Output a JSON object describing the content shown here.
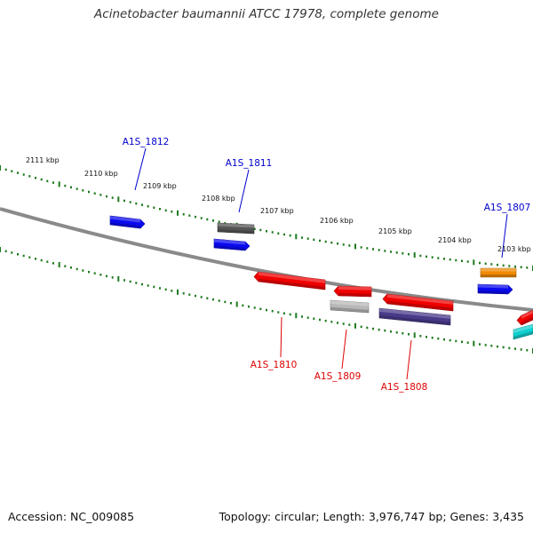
{
  "title": "Acinetobacter baumannii ATCC 17978, complete genome",
  "footer": {
    "accession": "Accession: NC_009085",
    "summary": "Topology: circular; Length: 3,976,747 bp; Genes: 3,435"
  },
  "colors": {
    "backbone": "#8a8a8a",
    "tick": "#1e7a1e",
    "label_forward": "#0000cc",
    "label_reverse": "#dd0000"
  },
  "ruler": [
    {
      "label": "2111 kbp"
    },
    {
      "label": "2110 kbp"
    },
    {
      "label": "2109 kbp"
    },
    {
      "label": "2108 kbp"
    },
    {
      "label": "2107 kbp"
    },
    {
      "label": "2106 kbp"
    },
    {
      "label": "2105 kbp"
    },
    {
      "label": "2104 kbp"
    },
    {
      "label": "2103 kbp"
    }
  ],
  "gene_labels": [
    {
      "name": "gene-label-a1s-1812",
      "text": "A1S_1812",
      "strand": "forward"
    },
    {
      "name": "gene-label-a1s-1811",
      "text": "A1S_1811",
      "strand": "forward"
    },
    {
      "name": "gene-label-a1s-1807",
      "text": "A1S_1807",
      "strand": "forward"
    },
    {
      "name": "gene-label-a1s-1810",
      "text": "A1S_1810",
      "strand": "reverse"
    },
    {
      "name": "gene-label-a1s-1809",
      "text": "A1S_1809",
      "strand": "reverse"
    },
    {
      "name": "gene-label-a1s-1808",
      "text": "A1S_1808",
      "strand": "reverse"
    }
  ],
  "features": [
    {
      "name": "feature-blue-1",
      "color": "#0a0af0"
    },
    {
      "name": "feature-gray-dark",
      "color": "#555555"
    },
    {
      "name": "feature-blue-2",
      "color": "#0a0af0"
    },
    {
      "name": "feature-orange",
      "color": "#f08a00"
    },
    {
      "name": "feature-blue-3",
      "color": "#0a0af0"
    },
    {
      "name": "feature-red-1810",
      "color": "#f00000"
    },
    {
      "name": "feature-red-1809",
      "color": "#f00000"
    },
    {
      "name": "feature-gray-light",
      "color": "#b8b8b8"
    },
    {
      "name": "feature-red-1808",
      "color": "#f00000"
    },
    {
      "name": "feature-purple",
      "color": "#4a3a8a"
    },
    {
      "name": "feature-red-edge",
      "color": "#f00000"
    },
    {
      "name": "feature-cyan-edge",
      "color": "#10d0d0"
    }
  ]
}
